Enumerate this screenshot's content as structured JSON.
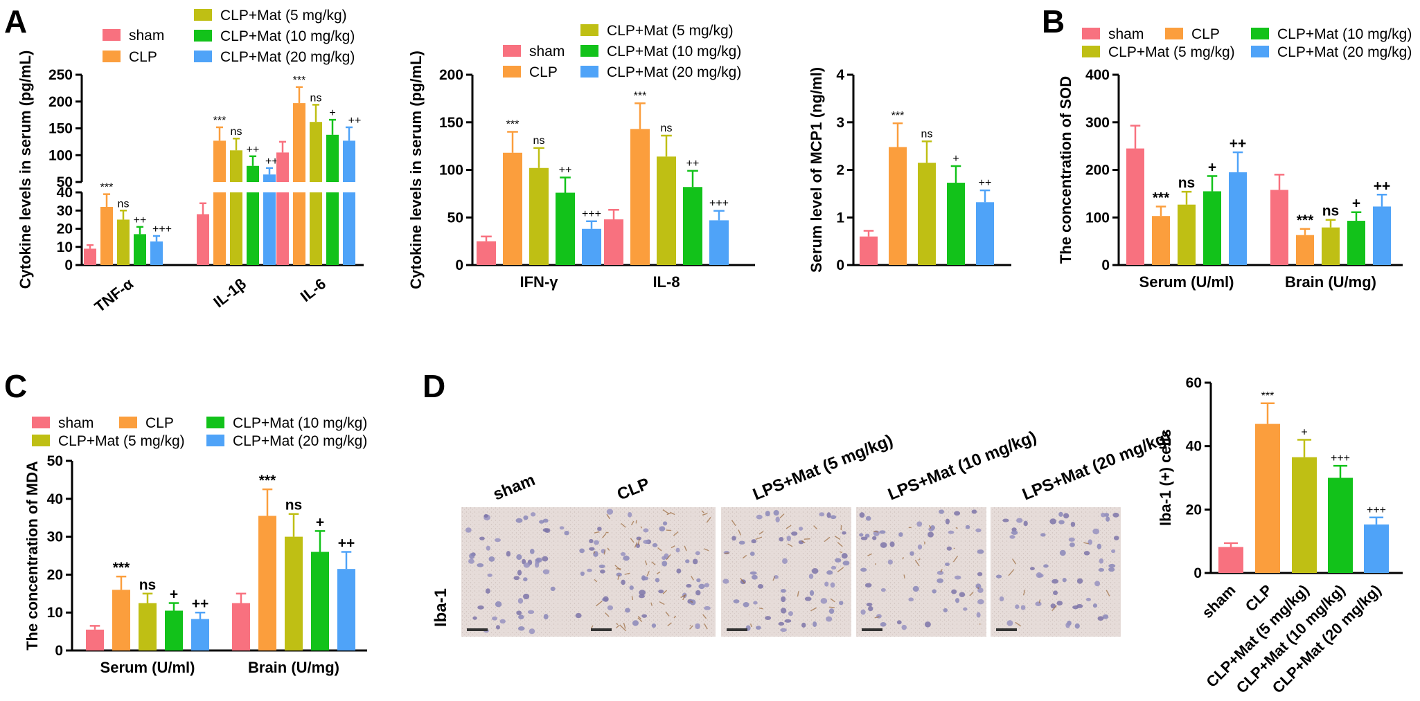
{
  "colors": [
    "#f8717f",
    "#fb9e3d",
    "#bfbf14",
    "#12c21a",
    "#4fa3f8"
  ],
  "panels": {
    "A": {
      "letter": "A"
    },
    "B": {
      "letter": "B"
    },
    "C": {
      "letter": "C"
    },
    "D": {
      "letter": "D"
    }
  },
  "chart_data": [
    {
      "id": "A1",
      "type": "bar",
      "ylabel": "Cytokine levels in serum (pg/mL)",
      "y_axis_break": true,
      "lower_range": [
        0,
        40
      ],
      "upper_range": [
        50,
        250
      ],
      "lower_ticks": [
        "0",
        "10",
        "20",
        "30",
        "40"
      ],
      "upper_ticks": [
        "50",
        "100",
        "150",
        "200",
        "250"
      ],
      "categories": [
        "TNF-α",
        "IL-1β",
        "IL-6"
      ],
      "legend": [
        "sham",
        "CLP",
        "CLP+Mat (5 mg/kg)",
        "CLP+Mat (10 mg/kg)",
        "CLP+Mat (20 mg/kg)"
      ],
      "series": [
        {
          "name": "sham",
          "values": [
            9,
            28,
            105
          ],
          "errors": [
            2,
            6,
            20
          ]
        },
        {
          "name": "CLP",
          "values": [
            32,
            127,
            197
          ],
          "errors": [
            7,
            25,
            30
          ]
        },
        {
          "name": "CLP+Mat (5 mg/kg)",
          "values": [
            25,
            109,
            162
          ],
          "errors": [
            5,
            22,
            32
          ]
        },
        {
          "name": "CLP+Mat (10 mg/kg)",
          "values": [
            17,
            80,
            138
          ],
          "errors": [
            4,
            18,
            28
          ]
        },
        {
          "name": "CLP+Mat (20 mg/kg)",
          "values": [
            13,
            64,
            127
          ],
          "errors": [
            3,
            12,
            25
          ]
        }
      ],
      "annotations": [
        [
          "",
          "***",
          "ns",
          "++",
          "+++"
        ],
        [
          "",
          "***",
          "ns",
          "++",
          "+++"
        ],
        [
          "",
          "***",
          "ns",
          "+",
          "++"
        ]
      ]
    },
    {
      "id": "A2",
      "type": "bar",
      "ylabel": "Cytokine levels in serum (pg/mL)",
      "ylim": [
        0,
        200
      ],
      "yticks": [
        "0",
        "50",
        "100",
        "150",
        "200"
      ],
      "categories": [
        "IFN-γ",
        "IL-8"
      ],
      "legend": [
        "sham",
        "CLP",
        "CLP+Mat (5 mg/kg)",
        "CLP+Mat (10 mg/kg)",
        "CLP+Mat (20 mg/kg)"
      ],
      "series": [
        {
          "name": "sham",
          "values": [
            25,
            48
          ],
          "errors": [
            5,
            10
          ]
        },
        {
          "name": "CLP",
          "values": [
            118,
            143
          ],
          "errors": [
            22,
            27
          ]
        },
        {
          "name": "CLP+Mat (5 mg/kg)",
          "values": [
            102,
            114
          ],
          "errors": [
            21,
            22
          ]
        },
        {
          "name": "CLP+Mat (10 mg/kg)",
          "values": [
            76,
            82
          ],
          "errors": [
            16,
            17
          ]
        },
        {
          "name": "CLP+Mat (20 mg/kg)",
          "values": [
            38,
            47
          ],
          "errors": [
            8,
            10
          ]
        }
      ],
      "annotations": [
        [
          "",
          "***",
          "ns",
          "++",
          "+++"
        ],
        [
          "",
          "***",
          "ns",
          "++",
          "+++"
        ]
      ]
    },
    {
      "id": "A3",
      "type": "bar",
      "ylabel": "Serum level of MCP1 (ng/ml)",
      "ylim": [
        0,
        4
      ],
      "yticks": [
        "0",
        "1",
        "2",
        "3",
        "4"
      ],
      "categories": [
        ""
      ],
      "series": [
        {
          "name": "sham",
          "values": [
            0.6
          ],
          "errors": [
            0.12
          ]
        },
        {
          "name": "CLP",
          "values": [
            2.48
          ],
          "errors": [
            0.5
          ]
        },
        {
          "name": "CLP+Mat (5 mg/kg)",
          "values": [
            2.15
          ],
          "errors": [
            0.45
          ]
        },
        {
          "name": "CLP+Mat (10 mg/kg)",
          "values": [
            1.73
          ],
          "errors": [
            0.35
          ]
        },
        {
          "name": "CLP+Mat (20 mg/kg)",
          "values": [
            1.32
          ],
          "errors": [
            0.25
          ]
        }
      ],
      "annotations": [
        [
          "",
          "***",
          "ns",
          "+",
          "++"
        ]
      ]
    },
    {
      "id": "B",
      "type": "bar",
      "ylabel": "The concentration of SOD",
      "ylim": [
        0,
        400
      ],
      "yticks": [
        "0",
        "100",
        "200",
        "300",
        "400"
      ],
      "categories": [
        "Serum (U/ml)",
        "Brain (U/mg)"
      ],
      "legend": [
        "sham",
        "CLP",
        "CLP+Mat (10 mg/kg)",
        "CLP+Mat (5 mg/kg)",
        "CLP+Mat (20 mg/kg)"
      ],
      "series": [
        {
          "name": "sham",
          "values": [
            245,
            158
          ],
          "errors": [
            48,
            32
          ]
        },
        {
          "name": "CLP",
          "values": [
            103,
            63
          ],
          "errors": [
            20,
            13
          ]
        },
        {
          "name": "CLP+Mat (5 mg/kg)",
          "values": [
            127,
            79
          ],
          "errors": [
            27,
            16
          ]
        },
        {
          "name": "CLP+Mat (10 mg/kg)",
          "values": [
            155,
            93
          ],
          "errors": [
            32,
            18
          ]
        },
        {
          "name": "CLP+Mat (20 mg/kg)",
          "values": [
            195,
            123
          ],
          "errors": [
            42,
            25
          ]
        }
      ],
      "annotations": [
        [
          "",
          "***",
          "ns",
          "+",
          "++"
        ],
        [
          "",
          "***",
          "ns",
          "+",
          "++"
        ]
      ]
    },
    {
      "id": "C",
      "type": "bar",
      "ylabel": "The concentration of MDA",
      "ylim": [
        0,
        50
      ],
      "yticks": [
        "0",
        "10",
        "20",
        "30",
        "40",
        "50"
      ],
      "categories": [
        "Serum (U/ml)",
        "Brain (U/mg)"
      ],
      "legend": [
        "sham",
        "CLP",
        "CLP+Mat (10 mg/kg)",
        "CLP+Mat (5 mg/kg)",
        "CLP+Mat (20 mg/kg)"
      ],
      "series": [
        {
          "name": "sham",
          "values": [
            5.5,
            12.5
          ],
          "errors": [
            1.0,
            2.5
          ]
        },
        {
          "name": "CLP",
          "values": [
            16,
            35.5
          ],
          "errors": [
            3.5,
            7
          ]
        },
        {
          "name": "CLP+Mat (5 mg/kg)",
          "values": [
            12.5,
            30
          ],
          "errors": [
            2.5,
            6
          ]
        },
        {
          "name": "CLP+Mat (10 mg/kg)",
          "values": [
            10.5,
            26
          ],
          "errors": [
            2,
            5.5
          ]
        },
        {
          "name": "CLP+Mat (20 mg/kg)",
          "values": [
            8.3,
            21.5
          ],
          "errors": [
            1.7,
            4.5
          ]
        }
      ],
      "annotations": [
        [
          "",
          "***",
          "ns",
          "+",
          "++"
        ],
        [
          "",
          "***",
          "ns",
          "+",
          "++"
        ]
      ]
    },
    {
      "id": "D",
      "type": "bar",
      "ylabel": "Iba-1 (+) cells",
      "ylim": [
        0,
        60
      ],
      "yticks": [
        "0",
        "20",
        "40",
        "60"
      ],
      "categories": [
        "sham",
        "CLP",
        "CLP+Mat (5 mg/kg)",
        "CLP+Mat (10 mg/kg)",
        "CLP+Mat (20 mg/kg)"
      ],
      "values": [
        8.2,
        47,
        36.5,
        30,
        15.3
      ],
      "errors": [
        1.2,
        6.5,
        5.5,
        3.8,
        2.2
      ],
      "annotations": [
        "",
        "***",
        "+",
        "+++",
        "+++"
      ]
    }
  ],
  "micrographs": {
    "row_label": "Iba-1",
    "column_labels": [
      "sham",
      "CLP",
      "LPS+Mat (5 mg/kg)",
      "LPS+Mat (10 mg/kg)",
      "LPS+Mat (20 mg/kg)"
    ]
  }
}
